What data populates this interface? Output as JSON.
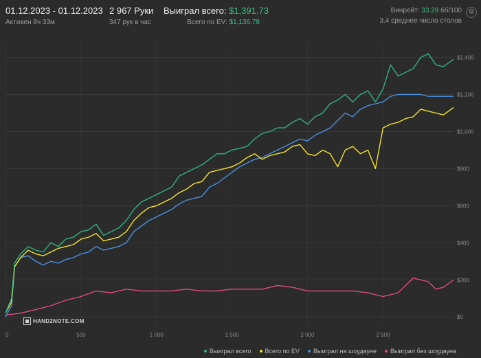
{
  "header": {
    "date_range": "01.12.2023 - 01.12.2023",
    "active": "Активен 8ч 33м",
    "hands": "2 967 Руки",
    "hands_per_hour": "347 рук в час",
    "won_label": "Выиграл всего:",
    "won_value": "$1,391.73",
    "ev_label": "Всего по EV:",
    "ev_value": "$1,136.78",
    "winrate_label": "Винрейт:",
    "winrate_value": "33.29",
    "winrate_suffix": "бб/100",
    "tables": "3.4 среднее число столов"
  },
  "logo": "HAND2NOTE.COM",
  "legend": [
    {
      "label": "Выиграл всего",
      "color": "#2fb37c"
    },
    {
      "label": "Всего по EV",
      "color": "#f5e52a"
    },
    {
      "label": "Выиграл на шоудауне",
      "color": "#4a90e2"
    },
    {
      "label": "Выиграл без шоудауна",
      "color": "#e04a86"
    }
  ],
  "chart_data": {
    "type": "line",
    "x_ticks": [
      0,
      500,
      1000,
      1500,
      2000,
      2500
    ],
    "x_tick_labels": [
      "0",
      "500",
      "1 000",
      "1 500",
      "2 000",
      "2 500"
    ],
    "y_ticks": [
      0,
      200,
      400,
      600,
      800,
      1000,
      1200,
      1400
    ],
    "y_tick_labels": [
      "$0",
      "$200",
      "$400",
      "$600",
      "$800",
      "$1,000",
      "$1,200",
      "$1,400"
    ],
    "xlim": [
      0,
      2967
    ],
    "ylim": [
      -40,
      1480
    ],
    "series": [
      {
        "name": "Выиграл всего",
        "color": "#2fb37c",
        "x": [
          0,
          40,
          60,
          100,
          150,
          200,
          250,
          300,
          350,
          400,
          450,
          500,
          550,
          600,
          650,
          700,
          750,
          800,
          850,
          900,
          950,
          1000,
          1050,
          1100,
          1150,
          1200,
          1250,
          1300,
          1350,
          1400,
          1450,
          1500,
          1550,
          1600,
          1650,
          1700,
          1750,
          1800,
          1850,
          1900,
          1950,
          2000,
          2050,
          2100,
          2150,
          2200,
          2250,
          2300,
          2350,
          2400,
          2450,
          2500,
          2550,
          2600,
          2650,
          2700,
          2750,
          2800,
          2850,
          2900,
          2967
        ],
        "y": [
          20,
          100,
          290,
          340,
          380,
          360,
          350,
          400,
          380,
          420,
          430,
          460,
          470,
          500,
          440,
          460,
          480,
          520,
          580,
          620,
          640,
          660,
          680,
          700,
          760,
          780,
          800,
          820,
          850,
          880,
          880,
          900,
          910,
          920,
          960,
          990,
          1000,
          1020,
          1020,
          1050,
          1070,
          1040,
          1080,
          1100,
          1150,
          1170,
          1200,
          1160,
          1200,
          1220,
          1160,
          1230,
          1360,
          1300,
          1320,
          1340,
          1400,
          1420,
          1360,
          1350,
          1390
        ]
      },
      {
        "name": "Всего по EV",
        "color": "#f5e52a",
        "x": [
          0,
          40,
          60,
          100,
          150,
          200,
          250,
          300,
          350,
          400,
          450,
          500,
          550,
          600,
          650,
          700,
          750,
          800,
          850,
          900,
          950,
          1000,
          1050,
          1100,
          1150,
          1200,
          1250,
          1300,
          1350,
          1400,
          1450,
          1500,
          1550,
          1600,
          1650,
          1700,
          1750,
          1800,
          1850,
          1900,
          1950,
          2000,
          2050,
          2100,
          2150,
          2200,
          2250,
          2300,
          2350,
          2400,
          2450,
          2500,
          2550,
          2600,
          2650,
          2700,
          2750,
          2800,
          2850,
          2900,
          2967
        ],
        "y": [
          20,
          80,
          270,
          320,
          360,
          340,
          330,
          350,
          370,
          380,
          390,
          420,
          430,
          450,
          410,
          420,
          430,
          460,
          520,
          560,
          590,
          600,
          620,
          640,
          670,
          690,
          720,
          730,
          780,
          790,
          800,
          810,
          830,
          860,
          880,
          850,
          870,
          880,
          890,
          920,
          930,
          880,
          870,
          900,
          880,
          810,
          900,
          920,
          880,
          900,
          800,
          1020,
          1040,
          1050,
          1070,
          1080,
          1120,
          1110,
          1100,
          1090,
          1130
        ]
      },
      {
        "name": "Выиграл на шоудауне",
        "color": "#4a90e2",
        "x": [
          0,
          40,
          60,
          100,
          150,
          200,
          250,
          300,
          350,
          400,
          450,
          500,
          550,
          600,
          650,
          700,
          750,
          800,
          850,
          900,
          950,
          1000,
          1050,
          1100,
          1150,
          1200,
          1250,
          1300,
          1350,
          1400,
          1450,
          1500,
          1550,
          1600,
          1650,
          1700,
          1750,
          1800,
          1850,
          1900,
          1950,
          2000,
          2050,
          2100,
          2150,
          2200,
          2250,
          2300,
          2350,
          2400,
          2450,
          2500,
          2550,
          2600,
          2650,
          2700,
          2750,
          2800,
          2850,
          2900,
          2967
        ],
        "y": [
          0,
          60,
          270,
          320,
          330,
          300,
          280,
          300,
          290,
          310,
          320,
          340,
          350,
          380,
          360,
          370,
          380,
          400,
          460,
          490,
          520,
          540,
          560,
          580,
          610,
          630,
          640,
          650,
          700,
          720,
          750,
          780,
          810,
          830,
          850,
          860,
          880,
          900,
          920,
          940,
          960,
          950,
          980,
          1000,
          1020,
          1060,
          1100,
          1080,
          1120,
          1140,
          1150,
          1160,
          1190,
          1200,
          1200,
          1200,
          1200,
          1190,
          1190,
          1190,
          1190
        ]
      },
      {
        "name": "Выиграл без шоудауна",
        "color": "#e04a86",
        "x": [
          0,
          100,
          200,
          300,
          400,
          500,
          600,
          700,
          800,
          900,
          1000,
          1100,
          1200,
          1300,
          1400,
          1500,
          1600,
          1700,
          1800,
          1900,
          2000,
          2100,
          2200,
          2300,
          2400,
          2500,
          2600,
          2700,
          2750,
          2800,
          2850,
          2900,
          2967
        ],
        "y": [
          10,
          20,
          40,
          60,
          90,
          110,
          140,
          130,
          150,
          140,
          140,
          140,
          150,
          140,
          140,
          150,
          150,
          150,
          170,
          160,
          140,
          140,
          140,
          140,
          130,
          110,
          130,
          210,
          200,
          190,
          150,
          160,
          200
        ]
      }
    ]
  }
}
